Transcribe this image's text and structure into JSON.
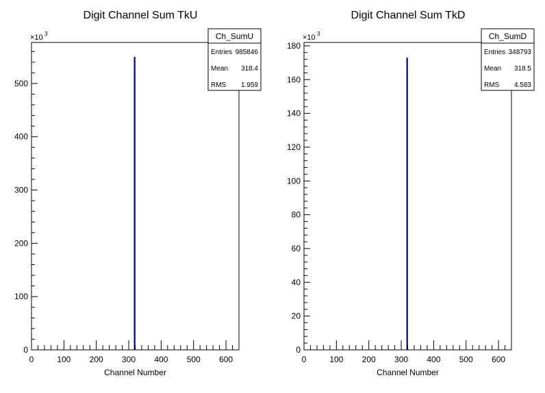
{
  "chart_data": [
    {
      "type": "bar",
      "title": "Digit Channel Sum TkU",
      "xlabel": "Channel Number",
      "ylabel": "",
      "exponent_label": "×10",
      "exponent_power": "3",
      "xlim": [
        0,
        640
      ],
      "ylim": [
        0,
        577
      ],
      "x_ticks": [
        "0",
        "100",
        "200",
        "300",
        "400",
        "500",
        "600"
      ],
      "y_ticks": [
        "0",
        "100",
        "200",
        "300",
        "400",
        "500"
      ],
      "bins": [
        {
          "x": 318,
          "value": 550
        }
      ],
      "line_color": "#000080",
      "stats": {
        "name": "Ch_SumU",
        "rows": [
          {
            "label": "Entries",
            "value": "985846"
          },
          {
            "label": "Mean",
            "value": "318.4"
          },
          {
            "label": "RMS",
            "value": "1.959"
          }
        ]
      }
    },
    {
      "type": "bar",
      "title": "Digit Channel Sum TkD",
      "xlabel": "Channel Number",
      "ylabel": "",
      "exponent_label": "×10",
      "exponent_power": "3",
      "xlim": [
        0,
        640
      ],
      "ylim": [
        0,
        182
      ],
      "x_ticks": [
        "0",
        "100",
        "200",
        "300",
        "400",
        "500",
        "600"
      ],
      "y_ticks": [
        "0",
        "20",
        "40",
        "60",
        "80",
        "100",
        "120",
        "140",
        "160",
        "180"
      ],
      "bins": [
        {
          "x": 318,
          "value": 173
        }
      ],
      "line_color": "#000080",
      "stats": {
        "name": "Ch_SumD",
        "rows": [
          {
            "label": "Entries",
            "value": "348793"
          },
          {
            "label": "Mean",
            "value": "318.5"
          },
          {
            "label": "RMS",
            "value": "4.583"
          }
        ]
      }
    }
  ]
}
